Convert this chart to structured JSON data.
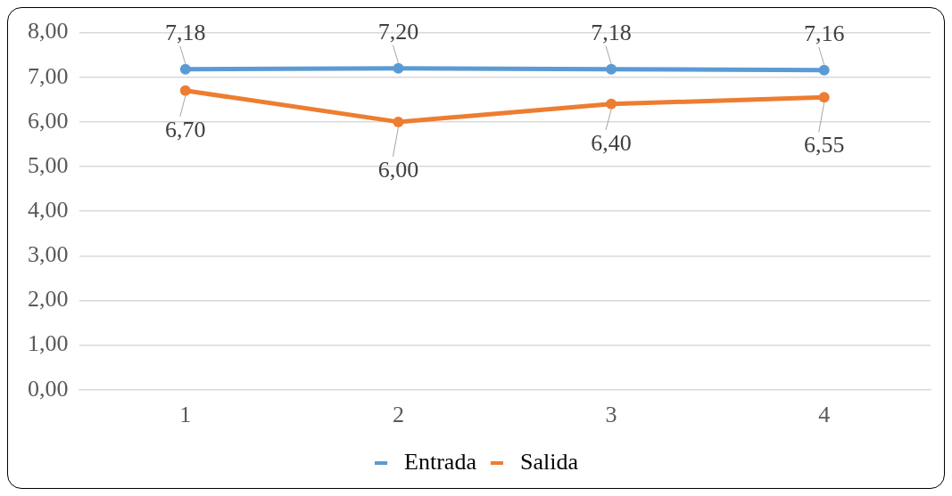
{
  "chart_data": {
    "type": "line",
    "categories": [
      "1",
      "2",
      "3",
      "4"
    ],
    "series": [
      {
        "name": "Entrada",
        "color": "#5b9bd5",
        "values": [
          7.18,
          7.2,
          7.18,
          7.16
        ],
        "value_labels": [
          "7,18",
          "7,20",
          "7,18",
          "7,16"
        ]
      },
      {
        "name": "Salida",
        "color": "#ed7d31",
        "values": [
          6.7,
          6.0,
          6.4,
          6.55
        ],
        "value_labels": [
          "6,70",
          "6,00",
          "6,40",
          "6,55"
        ]
      }
    ],
    "ylim": [
      0,
      8
    ],
    "yticks": [
      {
        "value": 0,
        "label": "0,00"
      },
      {
        "value": 1,
        "label": "1,00"
      },
      {
        "value": 2,
        "label": "2,00"
      },
      {
        "value": 3,
        "label": "3,00"
      },
      {
        "value": 4,
        "label": "4,00"
      },
      {
        "value": 5,
        "label": "5,00"
      },
      {
        "value": 6,
        "label": "6,00"
      },
      {
        "value": 7,
        "label": "7,00"
      },
      {
        "value": 8,
        "label": "8,00"
      }
    ],
    "grid": "y",
    "legend": "bottom",
    "marker": "circle",
    "line_style": "solid"
  }
}
